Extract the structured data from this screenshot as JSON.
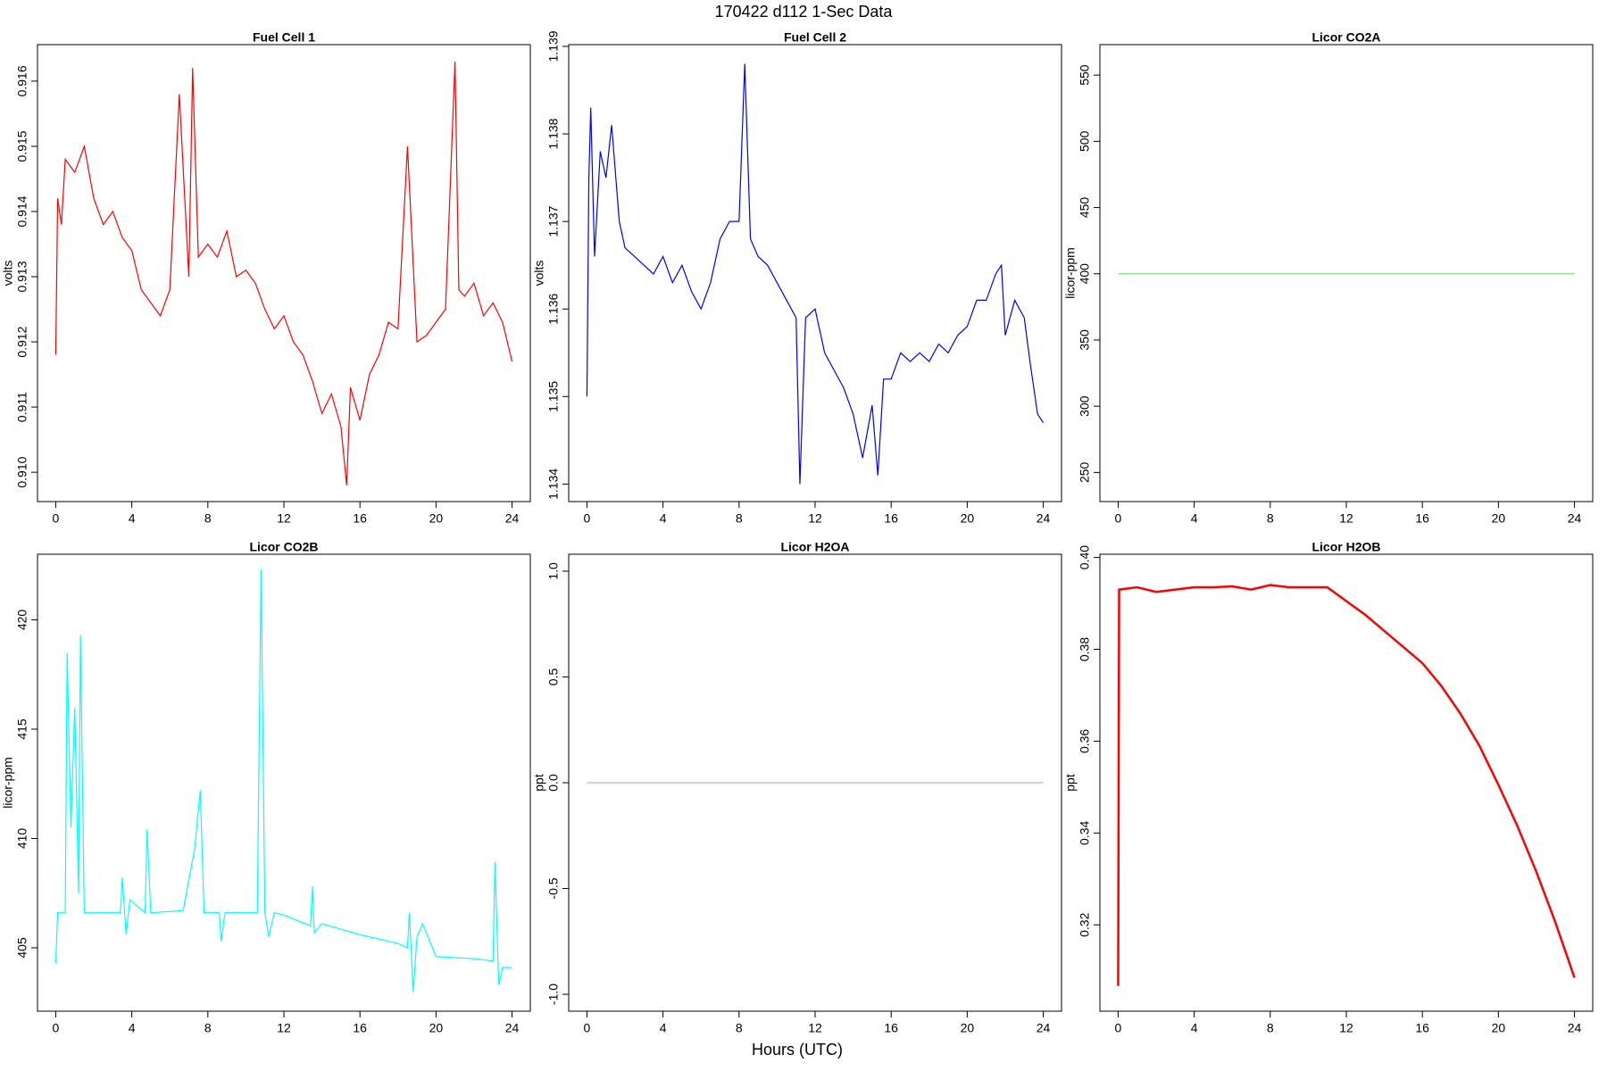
{
  "title": "170422   d112   1-Sec Data",
  "xlabel": "Hours (UTC)",
  "chart_data": [
    {
      "type": "line",
      "title": "Fuel Cell 1",
      "ylabel": "volts",
      "xlim": [
        -0.96,
        24.96
      ],
      "xticks": [
        0,
        4,
        8,
        12,
        16,
        20,
        24
      ],
      "ylim": [
        0.90955,
        0.91656
      ],
      "yticks": [
        {
          "value": 0.91,
          "label": "0.910"
        },
        0.911,
        0.912,
        0.913,
        0.914,
        0.915,
        0.916
      ],
      "series": [
        {
          "color": "#ff0000",
          "x": [
            0,
            0.1,
            0.3,
            0.5,
            1,
            1.5,
            2,
            2.5,
            3,
            3.5,
            4,
            4.5,
            5,
            5.5,
            6,
            6.5,
            7,
            7.2,
            7.5,
            8,
            8.5,
            9,
            9.5,
            10,
            10.5,
            11,
            11.5,
            12,
            12.5,
            13,
            13.5,
            14,
            14.5,
            15,
            15.3,
            15.5,
            16,
            16.5,
            17,
            17.5,
            18,
            18.5,
            19,
            19.5,
            20,
            20.5,
            21,
            21.2,
            21.5,
            22,
            22.5,
            23,
            23.5,
            24
          ],
          "values": [
            0.9118,
            0.9142,
            0.9138,
            0.9148,
            0.9146,
            0.915,
            0.9142,
            0.9138,
            0.914,
            0.9136,
            0.9134,
            0.9128,
            0.9126,
            0.9124,
            0.9128,
            0.9158,
            0.913,
            0.9162,
            0.9133,
            0.9135,
            0.9133,
            0.9137,
            0.913,
            0.9131,
            0.9129,
            0.9125,
            0.9122,
            0.9124,
            0.912,
            0.9118,
            0.9114,
            0.9109,
            0.9112,
            0.9107,
            0.9098,
            0.9113,
            0.9108,
            0.9115,
            0.9118,
            0.9123,
            0.9122,
            0.915,
            0.912,
            0.9121,
            0.9123,
            0.9125,
            0.9163,
            0.9128,
            0.9127,
            0.9129,
            0.9124,
            0.9126,
            0.9123,
            0.9117
          ]
        }
      ]
    },
    {
      "type": "line",
      "title": "Fuel Cell 2",
      "ylabel": "volts",
      "xlim": [
        -0.96,
        24.96
      ],
      "xticks": [
        0,
        4,
        8,
        12,
        16,
        20,
        24
      ],
      "ylim": [
        1.1338,
        1.13902
      ],
      "yticks": [
        1.134,
        1.135,
        1.136,
        1.137,
        1.138,
        1.139
      ],
      "series": [
        {
          "color": "#0000ff",
          "x": [
            0,
            0.1,
            0.2,
            0.4,
            0.7,
            1,
            1.3,
            1.7,
            2,
            2.5,
            3,
            3.5,
            4,
            4.5,
            5,
            5.5,
            6,
            6.5,
            7,
            7.5,
            8,
            8.3,
            8.6,
            9,
            9.5,
            10,
            10.5,
            11,
            11.2,
            11.5,
            12,
            12.5,
            13,
            13.5,
            14,
            14.5,
            15,
            15.3,
            15.6,
            16,
            16.5,
            17,
            17.5,
            18,
            18.5,
            19,
            19.5,
            20,
            20.5,
            21,
            21.5,
            21.8,
            22,
            22.5,
            23,
            23.3,
            23.7,
            24
          ],
          "values": [
            1.135,
            1.1375,
            1.1383,
            1.1366,
            1.1378,
            1.1375,
            1.1381,
            1.137,
            1.1367,
            1.1366,
            1.1365,
            1.1364,
            1.1366,
            1.1363,
            1.1365,
            1.1362,
            1.136,
            1.1363,
            1.1368,
            1.137,
            1.137,
            1.1388,
            1.1368,
            1.1366,
            1.1365,
            1.1363,
            1.1361,
            1.1359,
            1.134,
            1.1359,
            1.136,
            1.1355,
            1.1353,
            1.1351,
            1.1348,
            1.1343,
            1.1349,
            1.1341,
            1.1352,
            1.1352,
            1.1355,
            1.1354,
            1.1355,
            1.1354,
            1.1356,
            1.1355,
            1.1357,
            1.1358,
            1.1361,
            1.1361,
            1.1364,
            1.1365,
            1.1357,
            1.1361,
            1.1359,
            1.1354,
            1.1348,
            1.1347
          ]
        }
      ]
    },
    {
      "type": "line",
      "title": "Licor CO2A",
      "ylabel": "licor-ppm",
      "xlim": [
        -0.96,
        24.96
      ],
      "xticks": [
        0,
        4,
        8,
        12,
        16,
        20,
        24
      ],
      "ylim": [
        228,
        573
      ],
      "yticks": [
        250,
        300,
        350,
        400,
        450,
        500,
        550
      ],
      "series": [
        {
          "color": "#7be37b",
          "x": [
            0,
            24
          ],
          "values": [
            400,
            400
          ]
        }
      ]
    },
    {
      "type": "line",
      "title": "Licor CO2B",
      "ylabel": "licor-ppm",
      "xlim": [
        -0.96,
        24.96
      ],
      "xticks": [
        0,
        4,
        8,
        12,
        16,
        20,
        24
      ],
      "ylim": [
        402.1,
        423.0
      ],
      "yticks": [
        405,
        410,
        415,
        420
      ],
      "series": [
        {
          "color": "#00ffff",
          "x": [
            0,
            0.1,
            0.5,
            0.6,
            0.8,
            1,
            1.2,
            1.3,
            1.5,
            3.4,
            3.5,
            3.7,
            3.9,
            4.7,
            4.8,
            5,
            6.7,
            7.3,
            7.6,
            7.8,
            8.6,
            8.7,
            8.9,
            10.6,
            10.8,
            11,
            11.2,
            11.5,
            12,
            13.4,
            13.5,
            13.6,
            14,
            16,
            18,
            18.5,
            18.6,
            18.8,
            19,
            19.3,
            20,
            22,
            23,
            23.1,
            23.3,
            23.5,
            24
          ],
          "values": [
            404.3,
            406.6,
            406.6,
            418.5,
            410.5,
            416,
            407.5,
            419.3,
            406.6,
            406.6,
            408.2,
            405.6,
            407.2,
            406.6,
            410.4,
            406.6,
            406.7,
            409.5,
            412.2,
            406.6,
            406.6,
            405.3,
            406.6,
            406.6,
            422.3,
            406.6,
            405.5,
            406.6,
            406.5,
            406,
            407.8,
            405.7,
            406.1,
            405.6,
            405.2,
            405,
            406.6,
            403,
            405.5,
            406.1,
            404.6,
            404.5,
            404.4,
            408.9,
            403.3,
            404.1,
            404.1
          ]
        }
      ]
    },
    {
      "type": "line",
      "title": "Licor H2OA",
      "ylabel": "ppt",
      "xlim": [
        -0.96,
        24.96
      ],
      "xticks": [
        0,
        4,
        8,
        12,
        16,
        20,
        24
      ],
      "ylim": [
        -1.08,
        1.08
      ],
      "yticks": [
        {
          "value": -1,
          "label": "-1.0"
        },
        -0.5,
        {
          "value": 0,
          "label": "0.0"
        },
        0.5,
        {
          "value": 1,
          "label": "1.0"
        }
      ],
      "series": [
        {
          "color": "#dda0dd",
          "x": [
            0,
            24
          ],
          "values": [
            0,
            0
          ]
        }
      ]
    },
    {
      "type": "line",
      "title": "Licor H2OB",
      "ylabel": "ppt",
      "xlim": [
        -0.96,
        24.96
      ],
      "xticks": [
        0,
        4,
        8,
        12,
        16,
        20,
        24
      ],
      "ylim": [
        0.3012,
        0.4007
      ],
      "yticks": [
        0.32,
        0.34,
        0.36,
        0.38,
        {
          "value": 0.4,
          "label": "0.40"
        }
      ],
      "series": [
        {
          "color": "#ff0000",
          "x": [
            0,
            0.05,
            1,
            2,
            3,
            4,
            5,
            6,
            7,
            8,
            9,
            10,
            11,
            12,
            13,
            14,
            15,
            16,
            17,
            18,
            19,
            20,
            21,
            22,
            23,
            24
          ],
          "values": [
            0.3067,
            0.393,
            0.3935,
            0.3925,
            0.393,
            0.3935,
            0.3935,
            0.3937,
            0.393,
            0.394,
            0.3935,
            0.3935,
            0.3935,
            0.3905,
            0.3875,
            0.384,
            0.3805,
            0.377,
            0.372,
            0.366,
            0.359,
            0.3505,
            0.3415,
            0.3315,
            0.3205,
            0.3085
          ]
        }
      ]
    }
  ]
}
